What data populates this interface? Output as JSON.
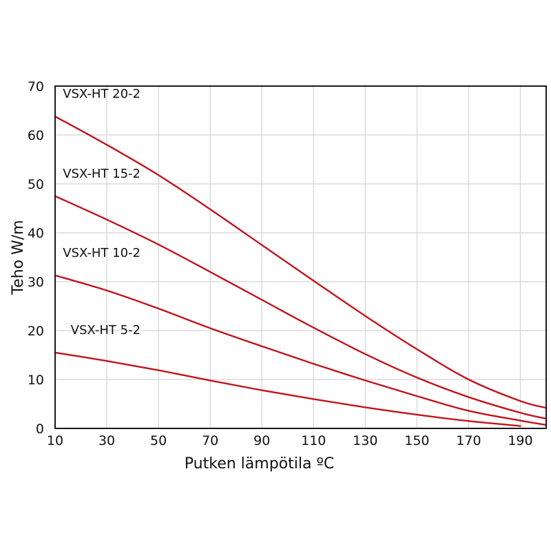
{
  "chart_data": {
    "type": "line",
    "title": "",
    "xlabel": "Putken lämpötila ºC",
    "ylabel": "Teho W/m",
    "xlim": [
      10,
      200
    ],
    "ylim": [
      0,
      70
    ],
    "xticks": [
      10,
      30,
      50,
      70,
      90,
      110,
      130,
      150,
      170,
      190
    ],
    "yticks": [
      0,
      10,
      20,
      30,
      40,
      50,
      60,
      70
    ],
    "grid": true,
    "legend": "inline labels at left",
    "line_color": "#c0141c",
    "series": [
      {
        "name": "VSX-HT 20-2",
        "points": [
          [
            10,
            63.8
          ],
          [
            30,
            58.0
          ],
          [
            50,
            51.8
          ],
          [
            70,
            44.8
          ],
          [
            90,
            37.5
          ],
          [
            110,
            30.2
          ],
          [
            130,
            23.0
          ],
          [
            150,
            16.2
          ],
          [
            170,
            10.0
          ],
          [
            190,
            5.6
          ],
          [
            200,
            4.2
          ]
        ]
      },
      {
        "name": "VSX-HT 15-2",
        "points": [
          [
            10,
            47.5
          ],
          [
            30,
            42.7
          ],
          [
            50,
            37.6
          ],
          [
            70,
            32.0
          ],
          [
            90,
            26.3
          ],
          [
            110,
            20.6
          ],
          [
            130,
            15.2
          ],
          [
            150,
            10.4
          ],
          [
            170,
            6.4
          ],
          [
            190,
            3.2
          ],
          [
            200,
            2.0
          ]
        ]
      },
      {
        "name": "VSX-HT 10-2",
        "points": [
          [
            10,
            31.3
          ],
          [
            30,
            28.2
          ],
          [
            50,
            24.5
          ],
          [
            70,
            20.5
          ],
          [
            90,
            16.8
          ],
          [
            110,
            13.2
          ],
          [
            130,
            9.8
          ],
          [
            150,
            6.6
          ],
          [
            170,
            3.6
          ],
          [
            190,
            1.6
          ],
          [
            200,
            0.7
          ]
        ]
      },
      {
        "name": "VSX-HT 5-2",
        "points": [
          [
            10,
            15.5
          ],
          [
            30,
            13.8
          ],
          [
            50,
            11.9
          ],
          [
            70,
            9.8
          ],
          [
            90,
            7.8
          ],
          [
            110,
            6.0
          ],
          [
            130,
            4.3
          ],
          [
            150,
            2.8
          ],
          [
            170,
            1.5
          ],
          [
            190,
            0.5
          ]
        ]
      }
    ]
  }
}
